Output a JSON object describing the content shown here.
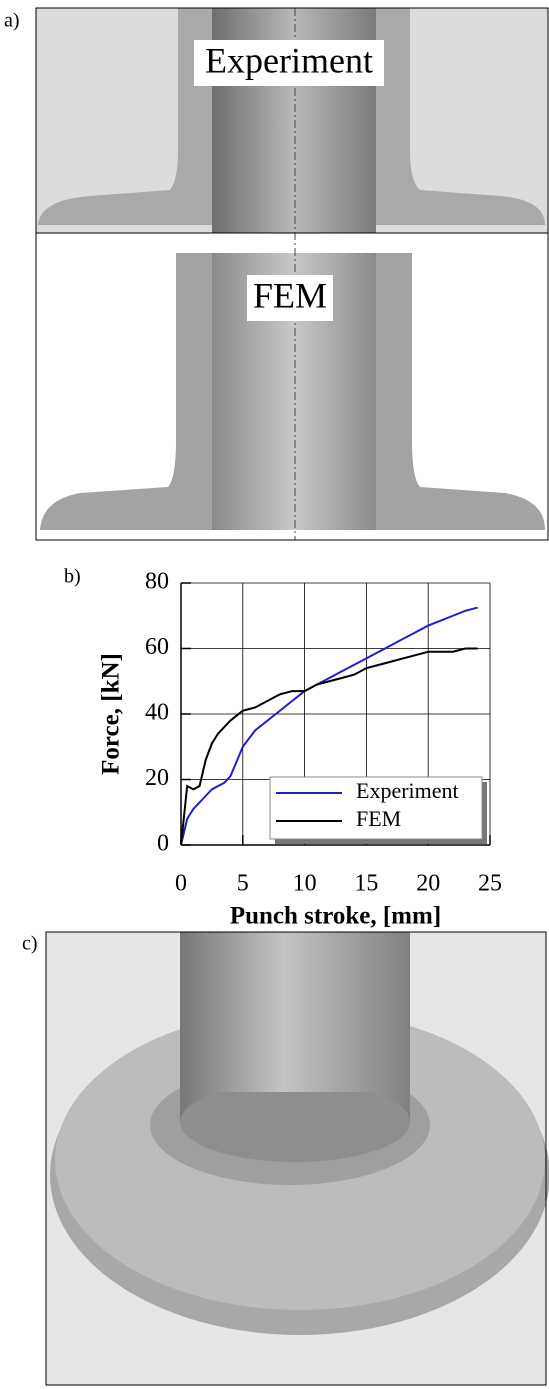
{
  "panels": [
    "a)",
    "b)",
    "c)"
  ],
  "photo_labels": [
    "Experiment",
    "FEM"
  ],
  "chart_data": {
    "type": "line",
    "xlabel": "Punch stroke, [mm]",
    "ylabel": "Force, [kN]",
    "x": [
      0,
      0.5,
      1,
      1.5,
      2,
      2.5,
      3,
      3.5,
      4,
      5,
      6,
      7,
      8,
      9,
      10,
      11,
      12,
      13,
      14,
      15,
      16,
      17,
      18,
      19,
      20,
      21,
      22,
      23,
      24
    ],
    "series": [
      {
        "name": "Experiment",
        "color": "#1f1fcc",
        "values": [
          0,
          8,
          11,
          13,
          15,
          17,
          18,
          19,
          21,
          30,
          35,
          38,
          41,
          44,
          47,
          49,
          51,
          53,
          55,
          57,
          59,
          61,
          63,
          65,
          67,
          68.5,
          70,
          71.5,
          72.5
        ]
      },
      {
        "name": "FEM",
        "color": "#000000",
        "values": [
          0,
          18,
          17,
          18,
          26,
          31,
          34,
          36,
          38,
          41,
          42,
          44,
          46,
          47,
          47,
          49,
          50,
          51,
          52,
          54,
          55,
          56,
          57,
          58,
          59,
          59,
          59,
          60,
          60
        ]
      }
    ],
    "xlim": [
      0,
      25
    ],
    "ylim": [
      0,
      80
    ],
    "xticks": [
      0,
      5,
      10,
      15,
      20,
      25
    ],
    "yticks": [
      0,
      20,
      40,
      60,
      80
    ],
    "grid": true,
    "legend": "lower right"
  }
}
